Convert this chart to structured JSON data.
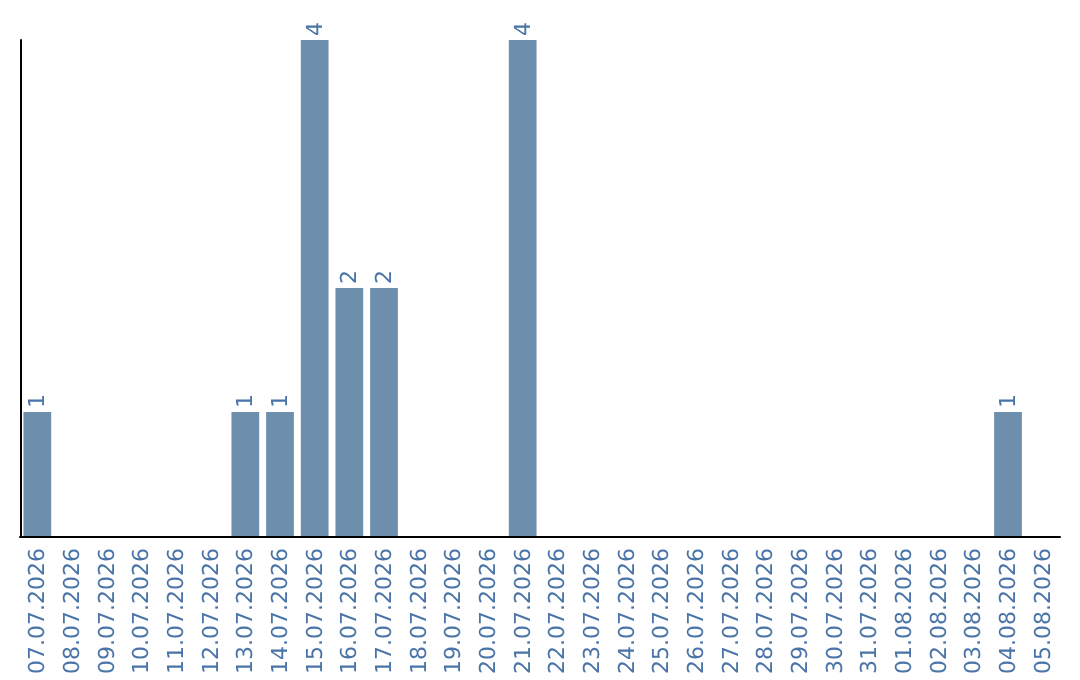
{
  "chart_data": {
    "type": "bar",
    "categories": [
      "07.07.2026",
      "08.07.2026",
      "09.07.2026",
      "10.07.2026",
      "11.07.2026",
      "12.07.2026",
      "13.07.2026",
      "14.07.2026",
      "15.07.2026",
      "16.07.2026",
      "17.07.2026",
      "18.07.2026",
      "19.07.2026",
      "20.07.2026",
      "21.07.2026",
      "22.07.2026",
      "23.07.2026",
      "24.07.2026",
      "25.07.2026",
      "26.07.2026",
      "27.07.2026",
      "28.07.2026",
      "29.07.2026",
      "30.07.2026",
      "31.07.2026",
      "01.08.2026",
      "02.08.2026",
      "03.08.2026",
      "04.08.2026",
      "05.08.2026"
    ],
    "values": [
      1,
      0,
      0,
      0,
      0,
      0,
      1,
      1,
      4,
      2,
      2,
      0,
      0,
      0,
      4,
      0,
      0,
      0,
      0,
      0,
      0,
      0,
      0,
      0,
      0,
      0,
      0,
      0,
      1,
      0
    ],
    "value_labels": [
      "1",
      null,
      null,
      null,
      null,
      null,
      "1",
      "1",
      "4",
      "2",
      "2",
      null,
      null,
      null,
      "4",
      null,
      null,
      null,
      null,
      null,
      null,
      null,
      null,
      null,
      null,
      null,
      null,
      null,
      "1",
      null
    ],
    "color": "#6d8fad",
    "grid": false
  }
}
